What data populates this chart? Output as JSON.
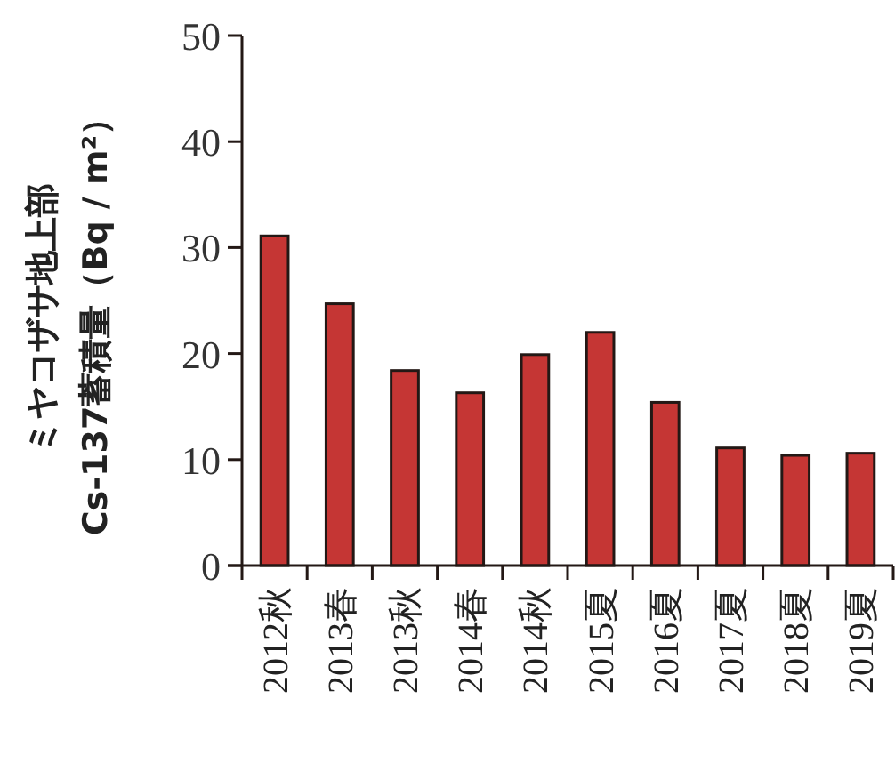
{
  "chart_data": {
    "type": "bar",
    "ylabel": "ミヤコザサ地上部\nCs-137蓄積量（Bq / m²）",
    "categories": [
      "2012秋",
      "2013春",
      "2013秋",
      "2014春",
      "2014秋",
      "2015夏",
      "2016夏",
      "2017夏",
      "2018夏",
      "2019夏"
    ],
    "values": [
      31.1,
      24.7,
      18.4,
      16.3,
      19.9,
      22.0,
      15.4,
      11.1,
      10.4,
      10.6
    ],
    "color": "#c53634",
    "ylim": [
      0,
      50
    ],
    "yticks": [
      0,
      10,
      20,
      30,
      40,
      50
    ],
    "grid": false
  }
}
